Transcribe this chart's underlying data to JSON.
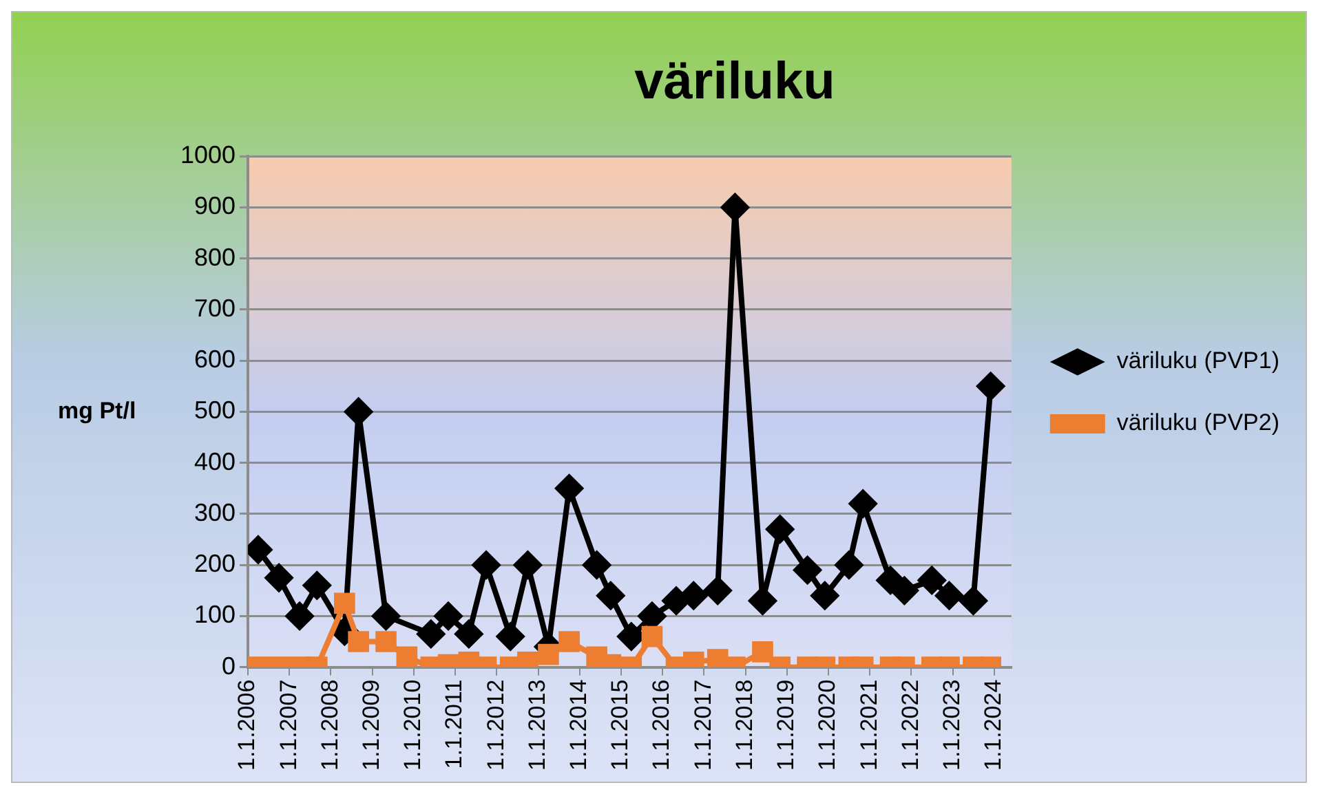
{
  "chart_data": {
    "type": "line",
    "title": "väriluku",
    "ylabel": "mg Pt/l",
    "x": [
      "2006-04",
      "2006-10",
      "2007-04",
      "2007-09",
      "2008-05",
      "2008-09",
      "2009-05",
      "2010-06",
      "2010-11",
      "2011-05",
      "2011-10",
      "2012-05",
      "2012-10",
      "2013-04",
      "2013-10",
      "2014-06",
      "2014-10",
      "2015-04",
      "2015-10",
      "2016-05",
      "2016-10",
      "2017-05",
      "2017-10",
      "2018-06",
      "2018-11",
      "2019-07",
      "2019-12",
      "2020-07",
      "2020-11",
      "2021-07",
      "2021-11",
      "2022-07",
      "2022-12",
      "2023-07",
      "2023-12"
    ],
    "series": [
      {
        "name": "väriluku (PVP1)",
        "color": "#000000",
        "marker": "diamond",
        "values": [
          230,
          175,
          100,
          160,
          70,
          500,
          100,
          65,
          100,
          65,
          200,
          60,
          200,
          40,
          350,
          200,
          140,
          60,
          100,
          130,
          140,
          150,
          900,
          130,
          270,
          190,
          140,
          200,
          320,
          170,
          150,
          170,
          140,
          130,
          550
        ]
      },
      {
        "name": "väriluku (PVP2)",
        "color": "#ed7d31",
        "marker": "square",
        "x": [
          "2006-04",
          "2006-10",
          "2007-04",
          "2007-09",
          "2008-05",
          "2008-09",
          "2009-05",
          "2009-11",
          "2010-06",
          "2010-11",
          "2011-05",
          "2011-10",
          "2012-05",
          "2012-10",
          "2013-04",
          "2013-10",
          "2014-06",
          "2014-10",
          "2015-04",
          "2015-10",
          "2016-05",
          "2016-10",
          "2017-05",
          "2017-10",
          "2018-06",
          "2018-11",
          "2019-07",
          "2019-12",
          "2020-07",
          "2020-11",
          "2021-07",
          "2021-11",
          "2022-07",
          "2022-12",
          "2023-07",
          "2023-12"
        ],
        "values": [
          0,
          0,
          0,
          0,
          125,
          50,
          50,
          20,
          0,
          5,
          10,
          0,
          0,
          10,
          25,
          50,
          20,
          5,
          0,
          60,
          0,
          10,
          15,
          0,
          30,
          0,
          0,
          0,
          0,
          0,
          0,
          0,
          0,
          0,
          0,
          0
        ]
      }
    ],
    "xlim": [
      "2006-01-01",
      "2024-06-01"
    ],
    "xticks": [
      {
        "value": "2006-01-01",
        "label": "1.1.2006"
      },
      {
        "value": "2007-01-01",
        "label": "1.1.2007"
      },
      {
        "value": "2008-01-01",
        "label": "1.1.2008"
      },
      {
        "value": "2009-01-01",
        "label": "1.1.2009"
      },
      {
        "value": "2010-01-01",
        "label": "1.1.2010"
      },
      {
        "value": "2011-01-01",
        "label": "1.1.2011"
      },
      {
        "value": "2012-01-01",
        "label": "1.1.2012"
      },
      {
        "value": "2013-01-01",
        "label": "1.1.2013"
      },
      {
        "value": "2014-01-01",
        "label": "1.1.2014"
      },
      {
        "value": "2015-01-01",
        "label": "1.1.2015"
      },
      {
        "value": "2016-01-01",
        "label": "1.1.2016"
      },
      {
        "value": "2017-01-01",
        "label": "1.1.2017"
      },
      {
        "value": "2018-01-01",
        "label": "1.1.2018"
      },
      {
        "value": "2019-01-01",
        "label": "1.1.2019"
      },
      {
        "value": "2020-01-01",
        "label": "1.1.2020"
      },
      {
        "value": "2021-01-01",
        "label": "1.1.2021"
      },
      {
        "value": "2022-01-01",
        "label": "1.1.2022"
      },
      {
        "value": "2023-01-01",
        "label": "1.1.2023"
      },
      {
        "value": "2024-01-01",
        "label": "1.1.2024"
      }
    ],
    "ylim": [
      0,
      1000
    ],
    "yticks": [
      0,
      100,
      200,
      300,
      400,
      500,
      600,
      700,
      800,
      900,
      1000
    ],
    "grid": "y",
    "legend": "right",
    "line_style": "solid"
  }
}
